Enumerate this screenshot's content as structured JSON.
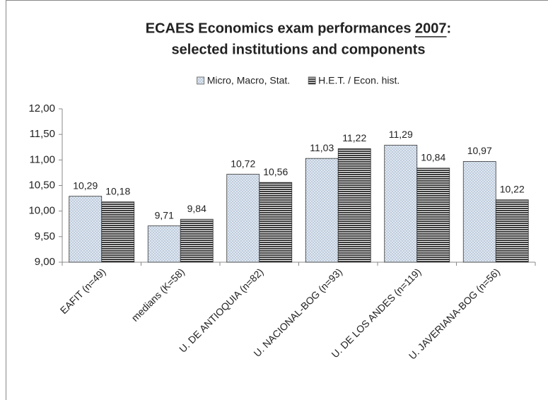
{
  "chart_data": {
    "type": "bar",
    "title": [
      "ECAES Economics exam performances 2007:",
      "selected institutions and components"
    ],
    "title_underline": "2007",
    "categories": [
      "EAFIT (n=49)",
      "medians (K=58)",
      "U. DE ANTIOQUIA (n=82)",
      "U. NACIONAL-BOG (n=93)",
      "U. DE LOS ANDES (n=119)",
      "U. JAVERIANA-BOG (n=56)"
    ],
    "series": [
      {
        "name": "Micro, Macro, Stat.",
        "color": "#dfe7f1",
        "pattern": "dots",
        "values": [
          10.29,
          9.71,
          10.72,
          11.03,
          11.29,
          10.97
        ],
        "value_labels": [
          "10,29",
          "9,71",
          "10,72",
          "11,03",
          "11,29",
          "10,97"
        ]
      },
      {
        "name": "H.E.T. / Econ. hist.",
        "color": "#3a3a3a",
        "pattern": "hlines",
        "values": [
          10.18,
          9.84,
          10.56,
          11.22,
          10.84,
          10.22
        ],
        "value_labels": [
          "10,18",
          "9,84",
          "10,56",
          "11,22",
          "10,84",
          "10,22"
        ]
      }
    ],
    "ylim": [
      9,
      12
    ],
    "yticks": [
      {
        "value": 9,
        "label": "9,00"
      },
      {
        "value": 9.5,
        "label": "9,50"
      },
      {
        "value": 10,
        "label": "10,00"
      },
      {
        "value": 10.5,
        "label": "10,50"
      },
      {
        "value": 11,
        "label": "11,00"
      },
      {
        "value": 11.5,
        "label": "11,50"
      },
      {
        "value": 12,
        "label": "12,00"
      }
    ],
    "legend": "top"
  }
}
